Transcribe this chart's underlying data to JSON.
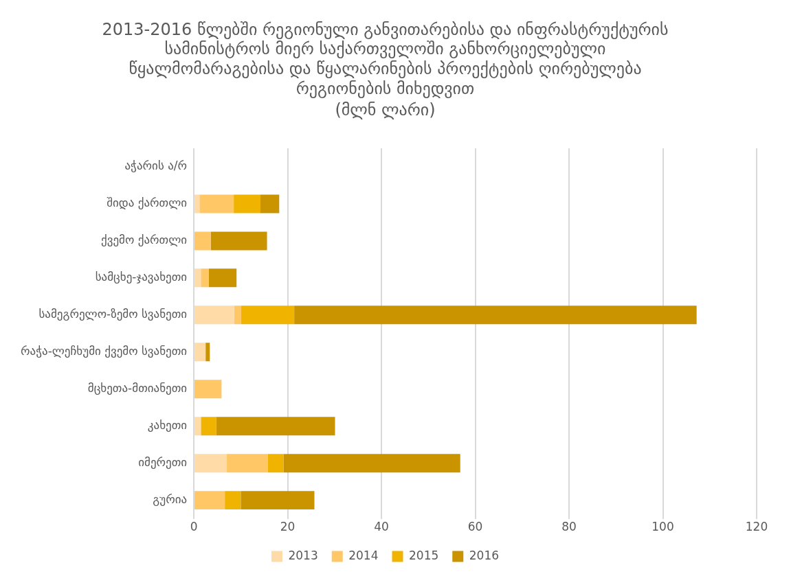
{
  "chart_data": {
    "type": "bar",
    "orientation": "horizontal",
    "stacked": true,
    "title": "2013-2016 წლებში რეგიონული განვითარებისა და ინფრასტრუქტურის სამინისტროს მიერ საქართველოში განხორციელებული წყალმომარაგებისა და წყალარინების პროექტების ღირებულება რეგიონების მიხედვით",
    "subtitle": "(მლნ ლარი)",
    "categories": [
      "აჭარის ა/რ",
      "შიდა ქართლი",
      "ქვემო ქართლი",
      "სამცხე-ჯავახეთი",
      "სამეგრელო-ზემო სვანეთი",
      "რაჭა-ლეჩხუმი ქვემო სვანეთი",
      "მცხეთა-მთიანეთი",
      "კახეთი",
      "იმერეთი",
      "გურია"
    ],
    "series": [
      {
        "name": "2013",
        "color": "#ffdba8",
        "values": [
          0,
          1.2,
          0,
          1.5,
          8.6,
          2.5,
          0,
          1.5,
          7.0,
          0
        ]
      },
      {
        "name": "2014",
        "color": "#ffc766",
        "values": [
          0,
          7.3,
          3.6,
          1.7,
          1.5,
          0,
          5.9,
          0,
          8.8,
          6.6
        ]
      },
      {
        "name": "2015",
        "color": "#f0b400",
        "values": [
          0,
          5.7,
          0,
          0,
          11.3,
          0,
          0,
          3.3,
          3.3,
          3.4
        ]
      },
      {
        "name": "2016",
        "color": "#c99400",
        "values": [
          0,
          4.0,
          12.0,
          5.9,
          85.8,
          0.9,
          0,
          25.3,
          37.7,
          15.7
        ]
      }
    ],
    "xlim": [
      0,
      120
    ],
    "xticks": [
      0,
      20,
      40,
      60,
      80,
      100,
      120
    ],
    "grid": "x",
    "legend": "bottom"
  }
}
